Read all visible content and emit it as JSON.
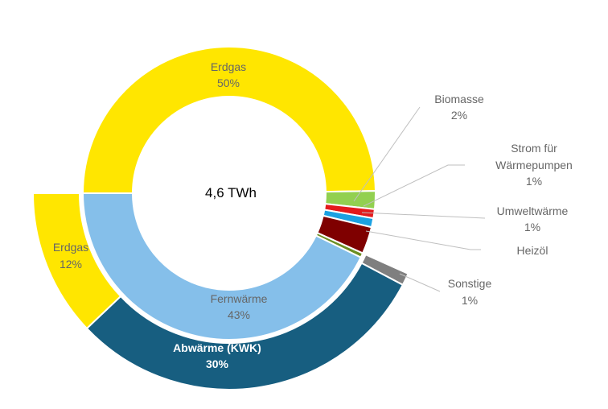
{
  "chart_data": {
    "type": "donut",
    "center_label": "4,6 TWh",
    "inner_ring": [
      {
        "name": "Erdgas",
        "label": "Erdgas",
        "value": 50,
        "value_label": "50%",
        "color": "#FFE600"
      },
      {
        "name": "Biomasse",
        "label": "Biomasse",
        "value": 2,
        "value_label": "2%",
        "color": "#92D050"
      },
      {
        "name": "Strom für Wärmepumpen",
        "label_lines": [
          "Strom für",
          "Wärmepumpen"
        ],
        "value": 1,
        "value_label": "1%",
        "color": "#E41A1C"
      },
      {
        "name": "Umweltwärme",
        "label": "Umweltwärme",
        "value": 1,
        "value_label": "1%",
        "color": "#1BA1E2"
      },
      {
        "name": "Heizöl",
        "label": "Heizöl",
        "value": 3,
        "value_label": "",
        "color": "#7F0000"
      },
      {
        "name": "Sonstige",
        "label": "Sonstige",
        "value": 0.5,
        "value_label": "",
        "color": "#6B8E23"
      },
      {
        "name": "Fernwärme",
        "label": "Fernwärme",
        "value": 43,
        "value_label": "43%",
        "color": "#85BFEA"
      }
    ],
    "outer_ring": [
      {
        "name": "Sonstige",
        "label": "Sonstige",
        "value": 1,
        "value_label": "1%",
        "color": "#7F7F7F"
      },
      {
        "name": "Abwärme (KWK)",
        "label": "Abwärme (KWK)",
        "value": 30,
        "value_label": "30%",
        "color": "#175E80"
      },
      {
        "name": "Erdgas",
        "label": "Erdgas",
        "value": 12,
        "value_label": "12%",
        "color": "#FFE600"
      }
    ],
    "labels": {
      "erdgas_inner": "Erdgas",
      "erdgas_inner_pct": "50%",
      "biomasse": "Biomasse",
      "biomasse_pct": "2%",
      "strom_line1": "Strom für",
      "strom_line2": "Wärmepumpen",
      "strom_pct": "1%",
      "umwelt": "Umweltwärme",
      "umwelt_pct": "1%",
      "heizoel": "Heizöl",
      "sonstige": "Sonstige",
      "sonstige_pct": "1%",
      "fernwaerme": "Fernwärme",
      "fernwaerme_pct": "43%",
      "abwaerme": "Abwärme (KWK)",
      "abwaerme_pct": "30%",
      "erdgas_outer": "Erdgas",
      "erdgas_outer_pct": "12%"
    }
  }
}
